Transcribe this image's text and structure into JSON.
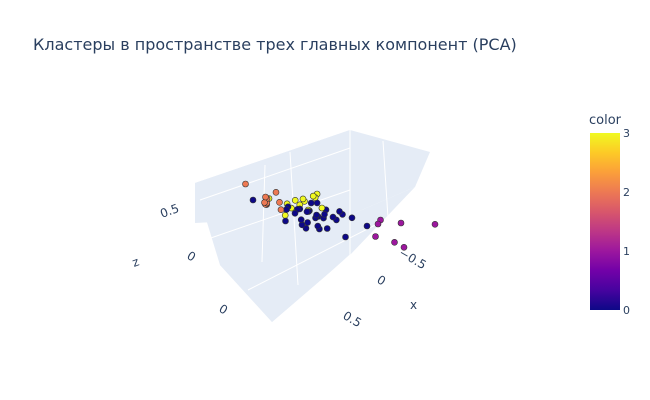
{
  "chart_data": {
    "type": "scatter",
    "title": "Кластеры в пространстве трех главных компонент (PCA)",
    "axes": {
      "x": {
        "label": "x",
        "ticks": [
          "0.5",
          "0",
          "−0.5"
        ]
      },
      "y": {
        "label": "",
        "ticks": [
          "0.5",
          "0"
        ]
      },
      "z": {
        "label": "z",
        "ticks": [
          "0.5",
          "0"
        ]
      }
    },
    "colorbar": {
      "title": "color",
      "ticks": [
        "3",
        "2",
        "1",
        "0"
      ],
      "range": [
        0,
        3
      ],
      "colorscale": [
        "#0d0887",
        "#46039f",
        "#7201a8",
        "#9c179e",
        "#bd3786",
        "#d8576b",
        "#ed7953",
        "#fb9f3a",
        "#fdca26",
        "#f0f921"
      ]
    },
    "cluster_colors": {
      "0": "#0d0887",
      "1": "#9c179e",
      "2": "#ed7953",
      "3": "#f0f921"
    },
    "background": "#e5ecf6",
    "points": [
      {
        "x": 0.05,
        "y": 0.1,
        "z": 0.3,
        "c": 3
      },
      {
        "x": -0.02,
        "y": 0.15,
        "z": 0.28,
        "c": 3
      },
      {
        "x": 0.1,
        "y": 0.05,
        "z": 0.26,
        "c": 3
      },
      {
        "x": 0.02,
        "y": 0.2,
        "z": 0.34,
        "c": 3
      },
      {
        "x": 0.08,
        "y": -0.05,
        "z": 0.25,
        "c": 3
      },
      {
        "x": 0.12,
        "y": 0.12,
        "z": 0.27,
        "c": 3
      },
      {
        "x": -0.05,
        "y": 0.02,
        "z": 0.25,
        "c": 3
      },
      {
        "x": 0.15,
        "y": 0.18,
        "z": 0.24,
        "c": 3
      },
      {
        "x": 0.04,
        "y": -0.02,
        "z": 0.28,
        "c": 3
      },
      {
        "x": 0.3,
        "y": 0.2,
        "z": 0.2,
        "c": 3
      },
      {
        "x": -0.05,
        "y": 0.08,
        "z": 0.45,
        "c": 3
      },
      {
        "x": 0.06,
        "y": 0.25,
        "z": 0.3,
        "c": 3
      },
      {
        "x": 0.08,
        "y": 0.3,
        "z": 0.23,
        "c": 3
      },
      {
        "x": -0.4,
        "y": -0.2,
        "z": 0.2,
        "c": 1
      },
      {
        "x": -0.45,
        "y": -0.1,
        "z": 0.15,
        "c": 1
      },
      {
        "x": -0.55,
        "y": -0.2,
        "z": 0.1,
        "c": 1
      },
      {
        "x": -0.6,
        "y": -0.25,
        "z": 0.05,
        "c": 1
      },
      {
        "x": -0.5,
        "y": -0.35,
        "z": 0.2,
        "c": 1
      },
      {
        "x": -0.7,
        "y": -0.5,
        "z": 0.25,
        "c": 1
      },
      {
        "x": -0.35,
        "y": -0.3,
        "z": 0.15,
        "c": 1
      },
      {
        "x": 0.4,
        "y": 0.1,
        "z": 0.0,
        "c": 2
      },
      {
        "x": 0.45,
        "y": 0.05,
        "z": -0.05,
        "c": 2
      },
      {
        "x": 0.35,
        "y": 0.0,
        "z": 0.0,
        "c": 2
      },
      {
        "x": 0.55,
        "y": 0.15,
        "z": 0.15,
        "c": 2
      },
      {
        "x": 0.3,
        "y": 0.05,
        "z": -0.02,
        "c": 2
      },
      {
        "x": 0.5,
        "y": -0.05,
        "z": -0.1,
        "c": 2
      },
      {
        "x": 0.55,
        "y": -0.1,
        "z": -0.15,
        "c": 2
      },
      {
        "x": 0.6,
        "y": -0.3,
        "z": -0.25,
        "c": 2
      },
      {
        "x": 0.42,
        "y": 0.08,
        "z": -0.03,
        "c": 2
      },
      {
        "x": 0.38,
        "y": 0.12,
        "z": 0.02,
        "c": 2
      },
      {
        "x": 0.48,
        "y": -0.02,
        "z": -0.12,
        "c": 2
      },
      {
        "x": 0.0,
        "y": 0.0,
        "z": 0.1,
        "c": 0
      },
      {
        "x": 0.05,
        "y": 0.05,
        "z": 0.15,
        "c": 0
      },
      {
        "x": -0.05,
        "y": 0.0,
        "z": 0.12,
        "c": 0
      },
      {
        "x": 0.1,
        "y": 0.0,
        "z": 0.08,
        "c": 0
      },
      {
        "x": 0.0,
        "y": -0.1,
        "z": 0.12,
        "c": 0
      },
      {
        "x": -0.1,
        "y": -0.05,
        "z": 0.14,
        "c": 0
      },
      {
        "x": 0.05,
        "y": -0.05,
        "z": 0.05,
        "c": 0
      },
      {
        "x": 0.15,
        "y": 0.05,
        "z": 0.1,
        "c": 0
      },
      {
        "x": -0.05,
        "y": 0.1,
        "z": 0.18,
        "c": 0
      },
      {
        "x": 0.08,
        "y": 0.1,
        "z": 0.06,
        "c": 0
      },
      {
        "x": -0.12,
        "y": 0.05,
        "z": 0.08,
        "c": 0
      },
      {
        "x": 0.02,
        "y": 0.08,
        "z": 0.2,
        "c": 0
      },
      {
        "x": -0.08,
        "y": -0.12,
        "z": 0.05,
        "c": 0
      },
      {
        "x": 0.12,
        "y": -0.08,
        "z": 0.12,
        "c": 0
      },
      {
        "x": 0.0,
        "y": 0.15,
        "z": 0.05,
        "c": 0
      },
      {
        "x": 0.2,
        "y": 0.1,
        "z": 0.12,
        "c": 0
      },
      {
        "x": -0.15,
        "y": -0.1,
        "z": 0.18,
        "c": 0
      },
      {
        "x": 0.05,
        "y": -0.15,
        "z": 0.0,
        "c": 0
      },
      {
        "x": -0.02,
        "y": 0.03,
        "z": 0.02,
        "c": 0
      },
      {
        "x": 0.1,
        "y": 0.15,
        "z": 0.15,
        "c": 0
      },
      {
        "x": -0.2,
        "y": -0.15,
        "z": 0.15,
        "c": 0
      },
      {
        "x": 0.18,
        "y": -0.02,
        "z": 0.04,
        "c": 0
      },
      {
        "x": -0.1,
        "y": 0.12,
        "z": 0.1,
        "c": 0
      },
      {
        "x": 0.03,
        "y": -0.03,
        "z": 0.22,
        "c": 0
      },
      {
        "x": -0.3,
        "y": -0.2,
        "z": 0.1,
        "c": 0
      },
      {
        "x": 0.25,
        "y": 0.05,
        "z": 0.02,
        "c": 0
      },
      {
        "x": -0.05,
        "y": -0.2,
        "z": 0.08,
        "c": 0
      },
      {
        "x": 0.0,
        "y": 0.2,
        "z": 0.12,
        "c": 0
      },
      {
        "x": 0.15,
        "y": 0.2,
        "z": 0.05,
        "c": 0
      },
      {
        "x": -0.25,
        "y": 0.0,
        "z": 0.05,
        "c": 0
      },
      {
        "x": 0.08,
        "y": 0.02,
        "z": -0.02,
        "c": 0
      },
      {
        "x": 0.3,
        "y": 0.4,
        "z": 0.3,
        "c": 0
      }
    ]
  }
}
